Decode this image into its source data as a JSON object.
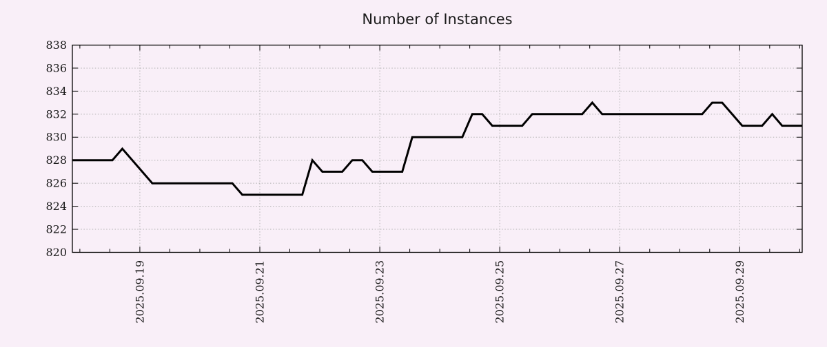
{
  "page": {
    "background_color": "#f9eff8"
  },
  "title": {
    "text": "Number of Instances"
  },
  "chart_data": {
    "type": "line",
    "title": "Number of Instances",
    "legend": "none",
    "grid": true,
    "grid_style": "dotted",
    "grid_color": "#b0b0b0",
    "frame_color": "#000000",
    "line_color": "#000000",
    "line_width": 3,
    "text_color": "#1a1a1a",
    "background_color": "#f9eff8",
    "xlabel": "",
    "ylabel": "",
    "ylim": [
      820,
      838
    ],
    "y_ticks": [
      820,
      822,
      824,
      826,
      828,
      830,
      832,
      834,
      836,
      838
    ],
    "x_axis": {
      "note": "day = days relative to 2025-09-19 00:00",
      "range_days": [
        -1.125,
        11.042
      ],
      "major_tick_interval_days": 2,
      "minor_tick_interval_days": 0.5,
      "major_ticks": [
        {
          "day": 0,
          "label": "2025.09.19"
        },
        {
          "day": 2,
          "label": "2025.09.21"
        },
        {
          "day": 4,
          "label": "2025.09.23"
        },
        {
          "day": 6,
          "label": "2025.09.25"
        },
        {
          "day": 8,
          "label": "2025.09.27"
        },
        {
          "day": 10,
          "label": "2025.09.29"
        }
      ]
    },
    "points": [
      {
        "time": "2025-09-17 21:00",
        "day": -1.125,
        "value": 828
      },
      {
        "time": "2025-09-18 13:00",
        "day": -0.458,
        "value": 828
      },
      {
        "time": "2025-09-18 17:00",
        "day": -0.292,
        "value": 829
      },
      {
        "time": "2025-09-19 05:00",
        "day": 0.208,
        "value": 826
      },
      {
        "time": "2025-09-20 13:00",
        "day": 1.542,
        "value": 826
      },
      {
        "time": "2025-09-20 17:00",
        "day": 1.708,
        "value": 825
      },
      {
        "time": "2025-09-21 17:00",
        "day": 2.708,
        "value": 825
      },
      {
        "time": "2025-09-21 21:00",
        "day": 2.875,
        "value": 828
      },
      {
        "time": "2025-09-22 01:00",
        "day": 3.042,
        "value": 827
      },
      {
        "time": "2025-09-22 09:00",
        "day": 3.375,
        "value": 827
      },
      {
        "time": "2025-09-22 13:00",
        "day": 3.542,
        "value": 828
      },
      {
        "time": "2025-09-22 17:00",
        "day": 3.708,
        "value": 828
      },
      {
        "time": "2025-09-22 21:00",
        "day": 3.875,
        "value": 827
      },
      {
        "time": "2025-09-23 09:00",
        "day": 4.375,
        "value": 827
      },
      {
        "time": "2025-09-23 13:00",
        "day": 4.542,
        "value": 830
      },
      {
        "time": "2025-09-24 09:00",
        "day": 5.375,
        "value": 830
      },
      {
        "time": "2025-09-24 13:00",
        "day": 5.542,
        "value": 832
      },
      {
        "time": "2025-09-24 17:00",
        "day": 5.708,
        "value": 832
      },
      {
        "time": "2025-09-24 21:00",
        "day": 5.875,
        "value": 831
      },
      {
        "time": "2025-09-25 09:00",
        "day": 6.375,
        "value": 831
      },
      {
        "time": "2025-09-25 13:00",
        "day": 6.542,
        "value": 832
      },
      {
        "time": "2025-09-26 09:00",
        "day": 7.375,
        "value": 832
      },
      {
        "time": "2025-09-26 13:00",
        "day": 7.542,
        "value": 833
      },
      {
        "time": "2025-09-26 17:00",
        "day": 7.708,
        "value": 832
      },
      {
        "time": "2025-09-28 09:00",
        "day": 9.375,
        "value": 832
      },
      {
        "time": "2025-09-28 13:00",
        "day": 9.542,
        "value": 833
      },
      {
        "time": "2025-09-28 17:00",
        "day": 9.708,
        "value": 833
      },
      {
        "time": "2025-09-29 01:00",
        "day": 10.042,
        "value": 831
      },
      {
        "time": "2025-09-29 09:00",
        "day": 10.375,
        "value": 831
      },
      {
        "time": "2025-09-29 13:00",
        "day": 10.542,
        "value": 832
      },
      {
        "time": "2025-09-29 17:00",
        "day": 10.708,
        "value": 831
      },
      {
        "time": "2025-09-30 01:00",
        "day": 11.042,
        "value": 831
      }
    ]
  }
}
